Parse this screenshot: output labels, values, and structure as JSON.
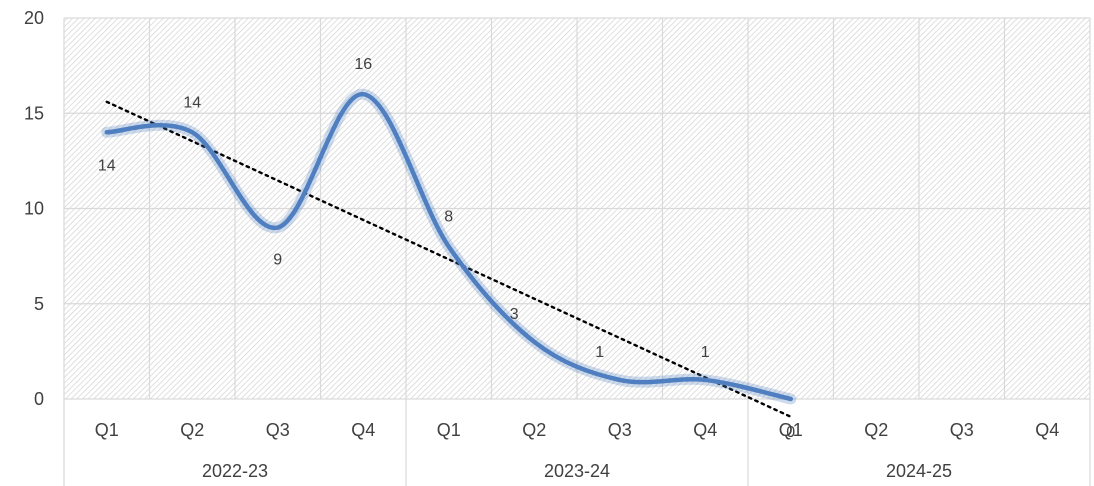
{
  "chart_data": {
    "type": "line",
    "title": "",
    "xlabel": "",
    "ylabel": "",
    "ylim": [
      0,
      20
    ],
    "yticks": [
      "0",
      "5",
      "10",
      "15",
      "20"
    ],
    "groups": [
      {
        "label": "2022-23",
        "categories": [
          "Q1",
          "Q2",
          "Q3",
          "Q4"
        ]
      },
      {
        "label": "2023-24",
        "categories": [
          "Q1",
          "Q2",
          "Q3",
          "Q4"
        ]
      },
      {
        "label": "2024-25",
        "categories": [
          "Q1",
          "Q2",
          "Q3",
          "Q4"
        ]
      }
    ],
    "series": [
      {
        "values": [
          14,
          14,
          9,
          16,
          8,
          3,
          1,
          1,
          0,
          null,
          null,
          null
        ],
        "labels": [
          "14",
          "14",
          "9",
          "16",
          "8",
          "3",
          "1",
          "1",
          "0",
          "",
          "",
          ""
        ],
        "color": "#4f7fc0",
        "smooth": true
      }
    ],
    "trendline": {
      "type": "linear",
      "style": "dotted",
      "color": "#000000"
    },
    "grid": true,
    "plot_background": "hatched"
  }
}
